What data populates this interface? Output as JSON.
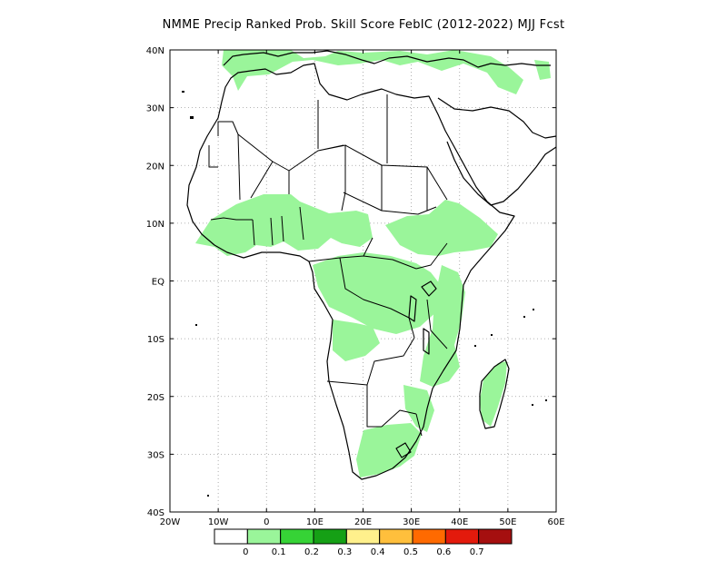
{
  "title": "NMME Precip Ranked Prob. Skill Score FebIC (2012-2022) MJJ Fcst",
  "map": {
    "lon_range": [
      -20,
      60
    ],
    "lat_range": [
      -40,
      40
    ],
    "lat_ticks": [
      {
        "value": 40,
        "label": "40N"
      },
      {
        "value": 30,
        "label": "30N"
      },
      {
        "value": 20,
        "label": "20N"
      },
      {
        "value": 10,
        "label": "10N"
      },
      {
        "value": 0,
        "label": "EQ"
      },
      {
        "value": -10,
        "label": "10S"
      },
      {
        "value": -20,
        "label": "20S"
      },
      {
        "value": -30,
        "label": "30S"
      },
      {
        "value": -40,
        "label": "40S"
      }
    ],
    "lon_ticks": [
      {
        "value": -20,
        "label": "20W"
      },
      {
        "value": -10,
        "label": "10W"
      },
      {
        "value": 0,
        "label": "0"
      },
      {
        "value": 10,
        "label": "10E"
      },
      {
        "value": 20,
        "label": "20E"
      },
      {
        "value": 30,
        "label": "30E"
      },
      {
        "value": 40,
        "label": "40E"
      },
      {
        "value": 50,
        "label": "50E"
      },
      {
        "value": 60,
        "label": "60E"
      }
    ],
    "grid": true,
    "land_outline_color": "#000000",
    "skill_fill_color": "#9af59a"
  },
  "colorbar": {
    "colors": [
      "#ffffff",
      "#9af59a",
      "#36d336",
      "#15a015",
      "#fff08c",
      "#ffbf3c",
      "#ff6a00",
      "#e31a0c",
      "#a50f0f"
    ],
    "labels": [
      "0",
      "0.1",
      "0.2",
      "0.3",
      "0.4",
      "0.5",
      "0.6",
      "0.7"
    ]
  }
}
